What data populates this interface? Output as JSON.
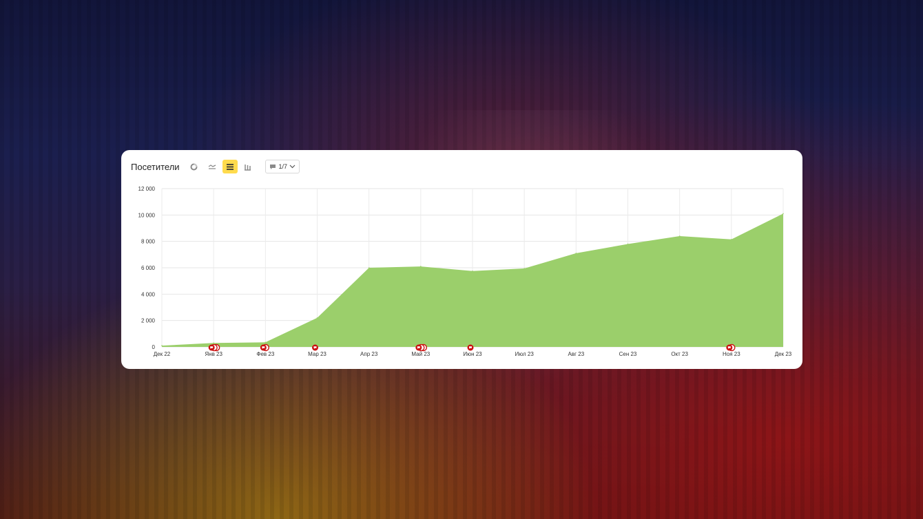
{
  "header": {
    "title": "Посетители",
    "annotations_label": "1/7"
  },
  "icons": [
    "pie-chart-icon",
    "line-chart-icon",
    "area-chart-icon",
    "bar-chart-icon",
    "comment-icon",
    "chevron-down-icon"
  ],
  "colors": {
    "area": "#9bcf6b",
    "marker": "#cc1111",
    "active_button": "#ffdb4d"
  },
  "chart_data": {
    "type": "area",
    "title": "Посетители",
    "categories": [
      "Дек 22",
      "Янв 23",
      "Фев 23",
      "Мар 23",
      "Апр 23",
      "Май 23",
      "Июн 23",
      "Июл 23",
      "Авг 23",
      "Сен 23",
      "Окт 23",
      "Ноя 23",
      "Дек 23"
    ],
    "series": [
      {
        "values": [
          100,
          300,
          350,
          2200,
          6000,
          6100,
          5750,
          5950,
          7100,
          7800,
          8400,
          8150,
          10100
        ]
      }
    ],
    "yticks": [
      "0",
      "2 000",
      "4 000",
      "6 000",
      "8 000",
      "10 000",
      "12 000"
    ],
    "ylim": [
      0,
      12000
    ],
    "grid": true,
    "markers": [
      {
        "category": "Янв 23",
        "count": 3
      },
      {
        "category": "Фев 23",
        "count": 2
      },
      {
        "category": "Мар 23",
        "count": 1
      },
      {
        "category": "Май 23",
        "count": 3
      },
      {
        "category": "Июн 23",
        "count": 1
      },
      {
        "category": "Ноя 23",
        "count": 2
      }
    ]
  }
}
